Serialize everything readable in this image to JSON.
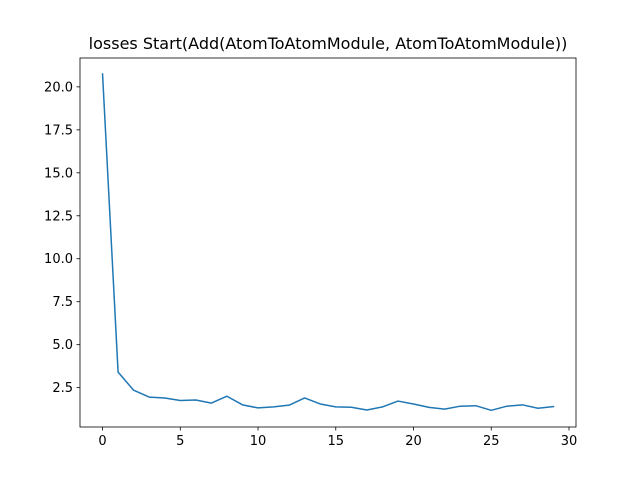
{
  "chart_data": {
    "type": "line",
    "title": "losses Start(Add(AtomToAtomModule, AtomToAtomModule))",
    "xlabel": "",
    "ylabel": "",
    "xlim": [
      -1.45,
      30.45
    ],
    "ylim": [
      0.21,
      21.68
    ],
    "xticks": [
      0,
      5,
      10,
      15,
      20,
      25,
      30
    ],
    "yticks": [
      2.5,
      5.0,
      7.5,
      10.0,
      12.5,
      15.0,
      17.5,
      20.0
    ],
    "xtick_labels": [
      "0",
      "5",
      "10",
      "15",
      "20",
      "25",
      "30"
    ],
    "ytick_labels": [
      "2.5",
      "5.0",
      "7.5",
      "10.0",
      "12.5",
      "15.0",
      "17.5",
      "20.0"
    ],
    "grid": false,
    "series": [
      {
        "color": "#1f77b4",
        "x": [
          0,
          1,
          2,
          3,
          4,
          5,
          6,
          7,
          8,
          9,
          10,
          11,
          12,
          13,
          14,
          15,
          16,
          17,
          18,
          19,
          20,
          21,
          22,
          23,
          24,
          25,
          26,
          27,
          28,
          29
        ],
        "y": [
          20.75,
          3.4,
          2.35,
          1.95,
          1.9,
          1.75,
          1.78,
          1.6,
          2.0,
          1.5,
          1.32,
          1.38,
          1.48,
          1.9,
          1.55,
          1.38,
          1.36,
          1.2,
          1.38,
          1.72,
          1.55,
          1.35,
          1.25,
          1.42,
          1.45,
          1.18,
          1.42,
          1.5,
          1.3,
          1.4
        ]
      }
    ]
  }
}
